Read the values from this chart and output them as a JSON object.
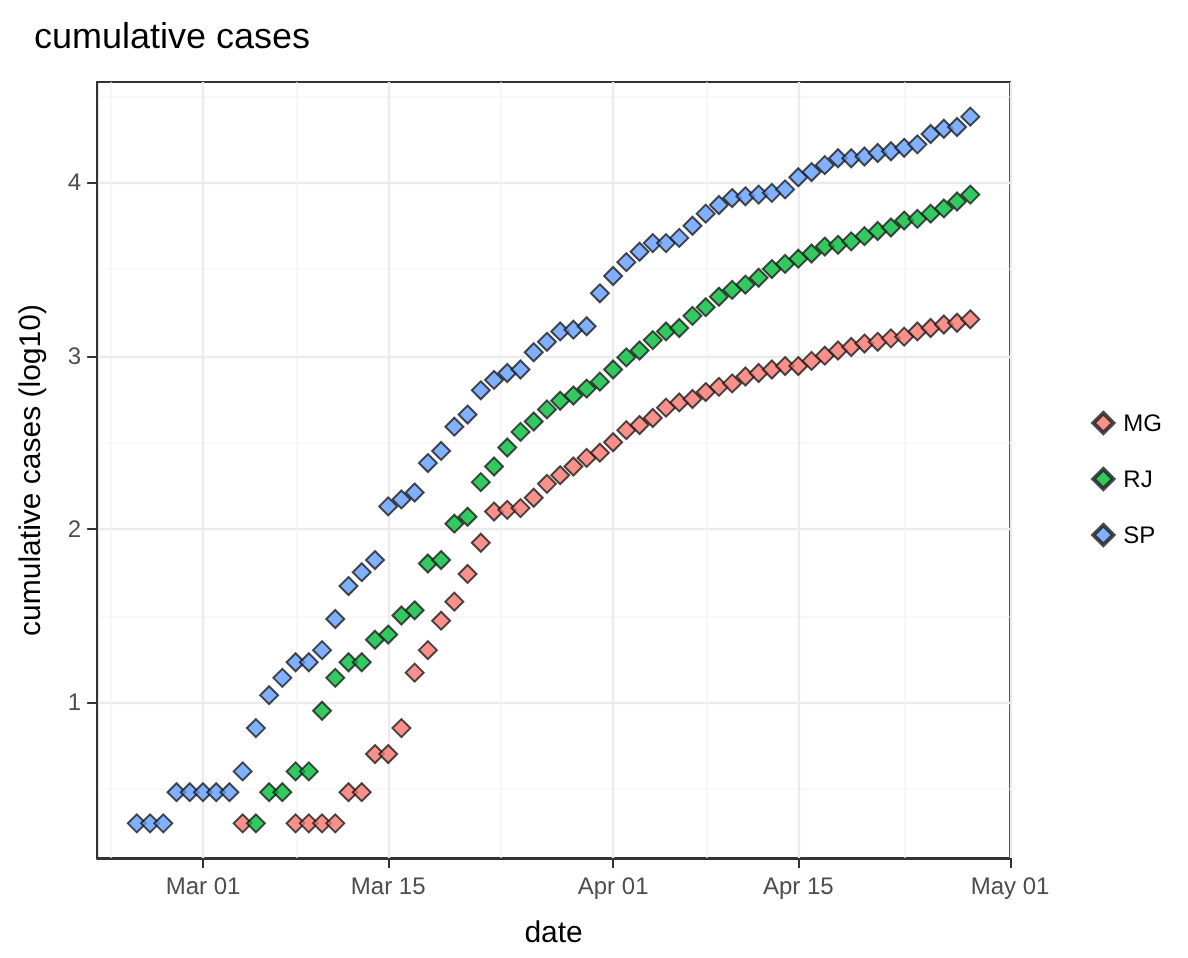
{
  "chart_data": {
    "type": "scatter",
    "title": "cumulative cases",
    "xlabel": "date",
    "ylabel": "cumulative cases (log10)",
    "x": [
      "--02-25",
      "--02-26",
      "--02-27",
      "--02-28",
      "--02-29",
      "--03-01",
      "--03-02",
      "--03-03",
      "--03-04",
      "--03-05",
      "--03-06",
      "--03-07",
      "--03-08",
      "--03-09",
      "--03-10",
      "--03-11",
      "--03-12",
      "--03-13",
      "--03-14",
      "--03-15",
      "--03-16",
      "--03-17",
      "--03-18",
      "--03-19",
      "--03-20",
      "--03-21",
      "--03-22",
      "--03-23",
      "--03-24",
      "--03-25",
      "--03-26",
      "--03-27",
      "--03-28",
      "--03-29",
      "--03-30",
      "--03-31",
      "--04-01",
      "--04-02",
      "--04-03",
      "--04-04",
      "--04-05",
      "--04-06",
      "--04-07",
      "--04-08",
      "--04-09",
      "--04-10",
      "--04-11",
      "--04-12",
      "--04-13",
      "--04-14",
      "--04-15",
      "--04-16",
      "--04-17",
      "--04-18",
      "--04-19",
      "--04-20",
      "--04-21",
      "--04-22",
      "--04-23",
      "--04-24",
      "--04-25",
      "--04-26",
      "--04-27",
      "--04-28"
    ],
    "series": [
      {
        "name": "MG",
        "color": "#f8766d",
        "values": [
          null,
          null,
          null,
          null,
          null,
          null,
          null,
          null,
          0.3,
          null,
          null,
          null,
          0.3,
          0.3,
          0.3,
          0.3,
          0.48,
          0.48,
          0.7,
          0.7,
          0.85,
          1.17,
          1.3,
          1.47,
          1.58,
          1.74,
          1.92,
          2.1,
          2.11,
          2.12,
          2.18,
          2.26,
          2.31,
          2.36,
          2.41,
          2.44,
          2.5,
          2.57,
          2.6,
          2.64,
          2.7,
          2.73,
          2.75,
          2.79,
          2.82,
          2.84,
          2.88,
          2.9,
          2.92,
          2.94,
          2.94,
          2.97,
          3.0,
          3.03,
          3.05,
          3.07,
          3.08,
          3.1,
          3.11,
          3.14,
          3.16,
          3.18,
          3.19,
          3.21
        ]
      },
      {
        "name": "RJ",
        "color": "#00ba38",
        "values": [
          null,
          null,
          null,
          null,
          null,
          null,
          null,
          null,
          null,
          0.3,
          0.48,
          0.48,
          0.6,
          0.6,
          0.95,
          1.14,
          1.23,
          1.23,
          1.36,
          1.39,
          1.5,
          1.53,
          1.8,
          1.82,
          2.03,
          2.07,
          2.27,
          2.36,
          2.47,
          2.56,
          2.62,
          2.69,
          2.74,
          2.77,
          2.81,
          2.85,
          2.92,
          2.99,
          3.03,
          3.09,
          3.14,
          3.16,
          3.23,
          3.28,
          3.34,
          3.38,
          3.41,
          3.45,
          3.5,
          3.53,
          3.56,
          3.59,
          3.63,
          3.64,
          3.66,
          3.69,
          3.72,
          3.74,
          3.78,
          3.79,
          3.82,
          3.85,
          3.89,
          3.93
        ]
      },
      {
        "name": "SP",
        "color": "#619cff",
        "values": [
          0.3,
          0.3,
          0.3,
          0.48,
          0.48,
          0.48,
          0.48,
          0.48,
          0.6,
          0.85,
          1.04,
          1.14,
          1.23,
          1.23,
          1.3,
          1.48,
          1.67,
          1.75,
          1.82,
          2.13,
          2.17,
          2.21,
          2.38,
          2.45,
          2.59,
          2.66,
          2.8,
          2.86,
          2.9,
          2.92,
          3.02,
          3.08,
          3.14,
          3.15,
          3.17,
          3.36,
          3.46,
          3.54,
          3.6,
          3.65,
          3.65,
          3.68,
          3.75,
          3.82,
          3.87,
          3.91,
          3.92,
          3.93,
          3.94,
          3.96,
          4.03,
          4.06,
          4.1,
          4.14,
          4.14,
          4.15,
          4.17,
          4.18,
          4.2,
          4.22,
          4.28,
          4.31,
          4.32,
          4.38
        ]
      }
    ],
    "xlim": [
      "--02-22",
      "--05-01"
    ],
    "xticks": [
      {
        "value": "--03-01",
        "label": "Mar 01"
      },
      {
        "value": "--03-15",
        "label": "Mar 15"
      },
      {
        "value": "--04-01",
        "label": "Apr 01"
      },
      {
        "value": "--04-15",
        "label": "Apr 15"
      },
      {
        "value": "--05-01",
        "label": "May 01"
      }
    ],
    "ylim": [
      0.1,
      4.58
    ],
    "yticks": [
      1,
      2,
      3,
      4
    ],
    "grid": true,
    "legend": "right",
    "marker": "diamond"
  }
}
